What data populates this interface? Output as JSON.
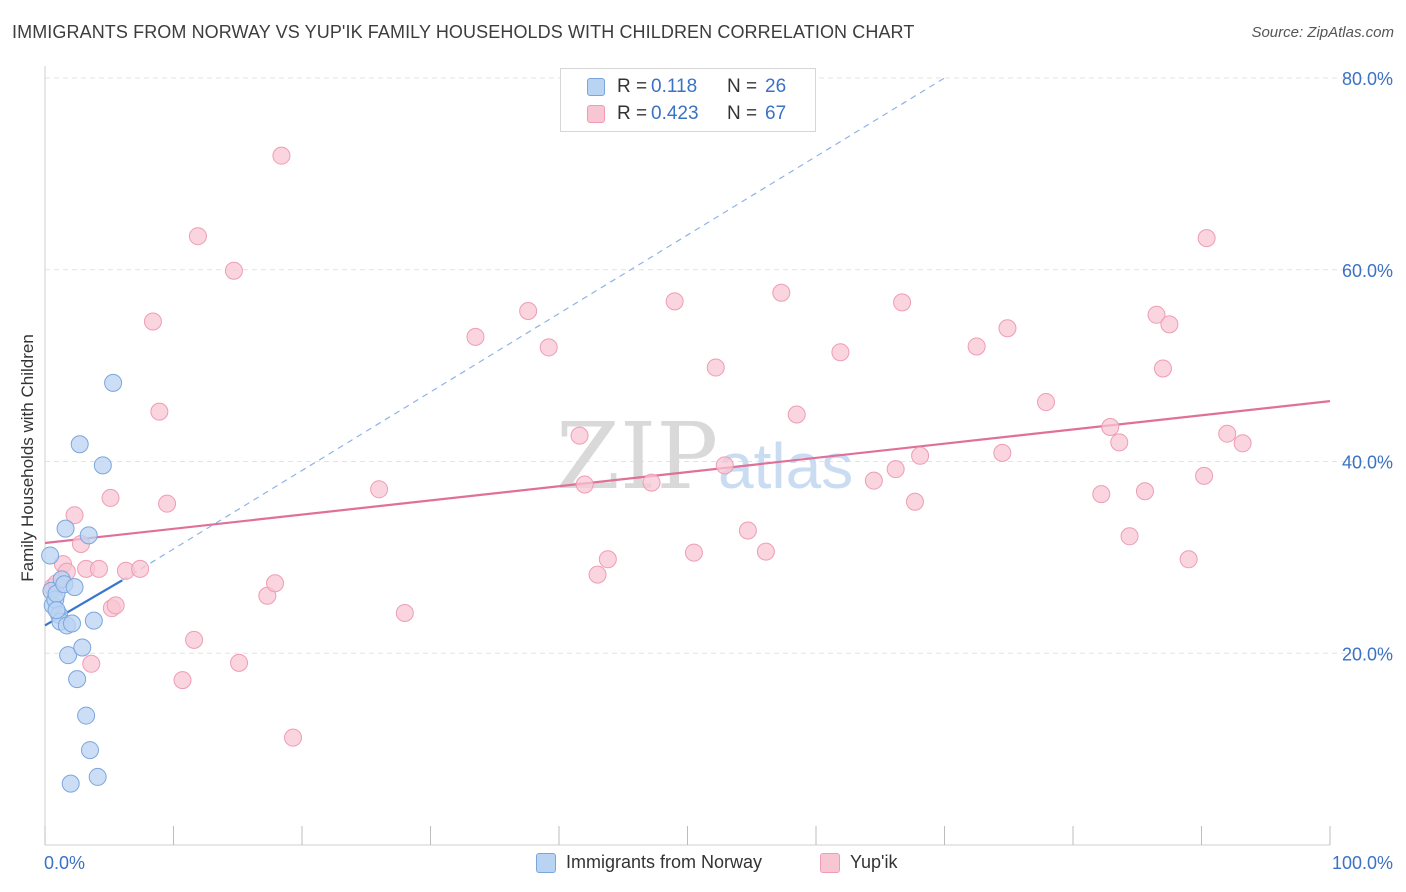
{
  "header": {
    "title": "IMMIGRANTS FROM NORWAY VS YUP'IK FAMILY HOUSEHOLDS WITH CHILDREN CORRELATION CHART",
    "source": "Source: ZipAtlas.com"
  },
  "colors": {
    "blue_fill": "#b9d3f3",
    "blue_stroke": "#7ba6dc",
    "blue_line": "#3a76cf",
    "pink_fill": "#f8c6d3",
    "pink_stroke": "#ee9db4",
    "pink_line": "#e07098",
    "tick_text": "#3a72c4"
  },
  "legend": {
    "rows": [
      {
        "r_label": "R =",
        "r_value": "0.118",
        "n_label": "N =",
        "n_value": "26"
      },
      {
        "r_label": "R =",
        "r_value": "0.423",
        "n_label": "N =",
        "n_value": "67"
      }
    ]
  },
  "bottom_legend": {
    "series1": "Immigrants from Norway",
    "series2": "Yup'ik"
  },
  "watermark": {
    "zip": "ZIP",
    "atlas": "atlas"
  },
  "chart_data": {
    "type": "scatter",
    "title": "IMMIGRANTS FROM NORWAY VS YUP'IK FAMILY HOUSEHOLDS WITH CHILDREN CORRELATION CHART",
    "xlabel": "",
    "ylabel": "Family Households with Children",
    "xlim": [
      0,
      100
    ],
    "ylim": [
      0,
      80
    ],
    "x_tick_labels": [
      "0.0%",
      "100.0%"
    ],
    "y_ticks": [
      20,
      40,
      60,
      80
    ],
    "y_tick_labels": [
      "20.0%",
      "40.0%",
      "60.0%",
      "80.0%"
    ],
    "grid": true,
    "legend_position": "top-center",
    "series": [
      {
        "name": "Immigrants from Norway",
        "R": 0.118,
        "N": 26,
        "points": [
          [
            0.4,
            30.2
          ],
          [
            0.5,
            26.5
          ],
          [
            0.6,
            25.0
          ],
          [
            0.8,
            25.6
          ],
          [
            0.9,
            26.2
          ],
          [
            1.1,
            24.0
          ],
          [
            1.2,
            23.3
          ],
          [
            1.3,
            27.7
          ],
          [
            1.5,
            27.2
          ],
          [
            1.6,
            33.0
          ],
          [
            1.7,
            22.9
          ],
          [
            1.8,
            19.8
          ],
          [
            2.0,
            6.4
          ],
          [
            2.3,
            26.9
          ],
          [
            2.5,
            17.3
          ],
          [
            2.7,
            41.8
          ],
          [
            2.9,
            20.6
          ],
          [
            3.2,
            13.5
          ],
          [
            3.4,
            32.3
          ],
          [
            3.5,
            9.9
          ],
          [
            3.8,
            23.4
          ],
          [
            4.1,
            7.1
          ],
          [
            4.5,
            39.6
          ],
          [
            5.3,
            48.2
          ],
          [
            0.9,
            24.5
          ],
          [
            2.1,
            23.1
          ]
        ],
        "trend": {
          "x": [
            0,
            6
          ],
          "y": [
            22.9,
            27.6
          ]
        },
        "trend_extension": {
          "x": [
            6,
            70
          ],
          "y": [
            27.6,
            80
          ]
        }
      },
      {
        "name": "Yup'ik",
        "R": 0.423,
        "N": 67,
        "points": [
          [
            0.6,
            26.9
          ],
          [
            0.9,
            27.3
          ],
          [
            1.4,
            29.3
          ],
          [
            1.7,
            28.5
          ],
          [
            2.3,
            34.4
          ],
          [
            2.8,
            31.4
          ],
          [
            3.2,
            28.8
          ],
          [
            3.6,
            18.9
          ],
          [
            4.2,
            28.8
          ],
          [
            5.1,
            36.2
          ],
          [
            5.2,
            24.7
          ],
          [
            5.5,
            25.0
          ],
          [
            6.3,
            28.6
          ],
          [
            7.4,
            28.8
          ],
          [
            8.4,
            54.6
          ],
          [
            8.9,
            45.2
          ],
          [
            9.5,
            35.6
          ],
          [
            10.7,
            17.2
          ],
          [
            11.6,
            21.4
          ],
          [
            11.9,
            63.5
          ],
          [
            14.7,
            59.9
          ],
          [
            15.1,
            19.0
          ],
          [
            17.3,
            26.0
          ],
          [
            17.9,
            27.3
          ],
          [
            18.4,
            71.9
          ],
          [
            19.3,
            11.2
          ],
          [
            26.0,
            37.1
          ],
          [
            28.0,
            24.2
          ],
          [
            33.5,
            53.0
          ],
          [
            37.6,
            55.7
          ],
          [
            39.2,
            51.9
          ],
          [
            41.6,
            42.7
          ],
          [
            42.0,
            37.6
          ],
          [
            43.0,
            28.2
          ],
          [
            43.8,
            29.8
          ],
          [
            47.2,
            37.8
          ],
          [
            49.0,
            56.7
          ],
          [
            50.5,
            30.5
          ],
          [
            52.2,
            49.8
          ],
          [
            52.9,
            39.6
          ],
          [
            54.7,
            32.8
          ],
          [
            56.1,
            30.6
          ],
          [
            57.3,
            57.6
          ],
          [
            58.5,
            44.9
          ],
          [
            61.9,
            51.4
          ],
          [
            64.5,
            38.0
          ],
          [
            66.2,
            39.2
          ],
          [
            66.7,
            56.6
          ],
          [
            67.7,
            35.8
          ],
          [
            68.1,
            40.6
          ],
          [
            72.5,
            52.0
          ],
          [
            74.5,
            40.9
          ],
          [
            74.9,
            53.9
          ],
          [
            77.9,
            46.2
          ],
          [
            82.2,
            36.6
          ],
          [
            82.9,
            43.6
          ],
          [
            83.6,
            42.0
          ],
          [
            84.4,
            32.2
          ],
          [
            85.6,
            36.9
          ],
          [
            86.5,
            55.3
          ],
          [
            87.0,
            49.7
          ],
          [
            87.5,
            54.3
          ],
          [
            89.0,
            29.8
          ],
          [
            90.2,
            38.5
          ],
          [
            90.4,
            63.3
          ],
          [
            92.0,
            42.9
          ],
          [
            93.2,
            41.9
          ]
        ],
        "trend": {
          "x": [
            0,
            100
          ],
          "y": [
            31.5,
            46.3
          ]
        }
      }
    ]
  }
}
